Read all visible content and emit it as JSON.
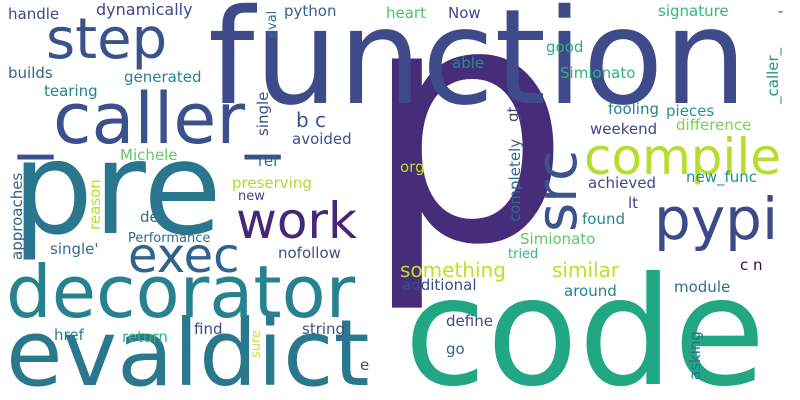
{
  "words": [
    {
      "text": "p",
      "color": "#472c7a"
    },
    {
      "text": "function",
      "color": "#3e4a89"
    },
    {
      "text": "code",
      "color": "#22a784"
    },
    {
      "text": "pre",
      "color": "#2a768e"
    },
    {
      "text": "evaldict",
      "color": "#2a788e"
    },
    {
      "text": "decorator",
      "color": "#26828e"
    },
    {
      "text": "_caller_",
      "color": "#3b518b"
    },
    {
      "text": "step",
      "color": "#3a538b"
    },
    {
      "text": "compile",
      "color": "#b5de2b"
    },
    {
      "text": "src",
      "color": "#3b528b"
    },
    {
      "text": "pypi",
      "color": "#3e4989"
    },
    {
      "text": "work",
      "color": "#482677"
    },
    {
      "text": "exec",
      "color": "#33638d"
    },
    {
      "text": "something",
      "color": "#bddf26"
    },
    {
      "text": "similar",
      "color": "#c0df25"
    },
    {
      "text": "handle",
      "color": "#3f4889"
    },
    {
      "text": "eval",
      "color": "#2e6e8e"
    },
    {
      "text": "dynamically",
      "color": "#3f4788"
    },
    {
      "text": "python",
      "color": "#32648e"
    },
    {
      "text": "heart",
      "color": "#4ac16d"
    },
    {
      "text": "Now",
      "color": "#3e4a89"
    },
    {
      "text": "signature",
      "color": "#35b779"
    },
    {
      "text": "-",
      "color": "#3b518b"
    },
    {
      "text": "good",
      "color": "#29af7f"
    },
    {
      "text": "able",
      "color": "#21918c"
    },
    {
      "text": "Simionato",
      "color": "#2db27d"
    },
    {
      "text": "builds",
      "color": "#31678e"
    },
    {
      "text": "generated",
      "color": "#25848e"
    },
    {
      "text": "tearing",
      "color": "#26828e"
    },
    {
      "text": "single",
      "color": "#3c4f8a"
    },
    {
      "text": "gt",
      "color": "#414487"
    },
    {
      "text": "_caller_",
      "color": "#21918c"
    },
    {
      "text": "fooling",
      "color": "#25848e"
    },
    {
      "text": "pieces",
      "color": "#1f9a8a"
    },
    {
      "text": "weekend",
      "color": "#3f4788"
    },
    {
      "text": "difference",
      "color": "#7ad151"
    },
    {
      "text": "b c",
      "color": "#3b528b"
    },
    {
      "text": "avoided",
      "color": "#3d4e8a"
    },
    {
      "text": "completely",
      "color": "#31688e"
    },
    {
      "text": "Michele",
      "color": "#5ec962"
    },
    {
      "text": "rel",
      "color": "#2c728e"
    },
    {
      "text": "org",
      "color": "#c2df23"
    },
    {
      "text": "achieved",
      "color": "#404688"
    },
    {
      "text": "new_func",
      "color": "#1f968b"
    },
    {
      "text": "approaches",
      "color": "#33638d"
    },
    {
      "text": "reason",
      "color": "#b8de29"
    },
    {
      "text": "preserving",
      "color": "#aadc32"
    },
    {
      "text": "new",
      "color": "#414487"
    },
    {
      "text": "def",
      "color": "#2c718e"
    },
    {
      "text": "found",
      "color": "#24878e"
    },
    {
      "text": "lt",
      "color": "#414487"
    },
    {
      "text": "Performance",
      "color": "#2f6c8e"
    },
    {
      "text": "single'",
      "color": "#2d708e"
    },
    {
      "text": "nofollow",
      "color": "#3b528b"
    },
    {
      "text": "Simionato",
      "color": "#5ec962"
    },
    {
      "text": "tried",
      "color": "#35b779"
    },
    {
      "text": "c n",
      "color": "#440154"
    },
    {
      "text": "additional",
      "color": "#3e4a89"
    },
    {
      "text": "module",
      "color": "#2e6f8e"
    },
    {
      "text": "around",
      "color": "#25858e"
    },
    {
      "text": "href",
      "color": "#26828e"
    },
    {
      "text": "return",
      "color": "#31b57b"
    },
    {
      "text": "find",
      "color": "#3f4889"
    },
    {
      "text": "string",
      "color": "#3b528b"
    },
    {
      "text": "define",
      "color": "#3f4788"
    },
    {
      "text": "sure",
      "color": "#d2e21b"
    },
    {
      "text": "asking",
      "color": "#2c718e"
    },
    {
      "text": "go",
      "color": "#33638d"
    },
    {
      "text": "e",
      "color": "#3e4a89"
    }
  ]
}
